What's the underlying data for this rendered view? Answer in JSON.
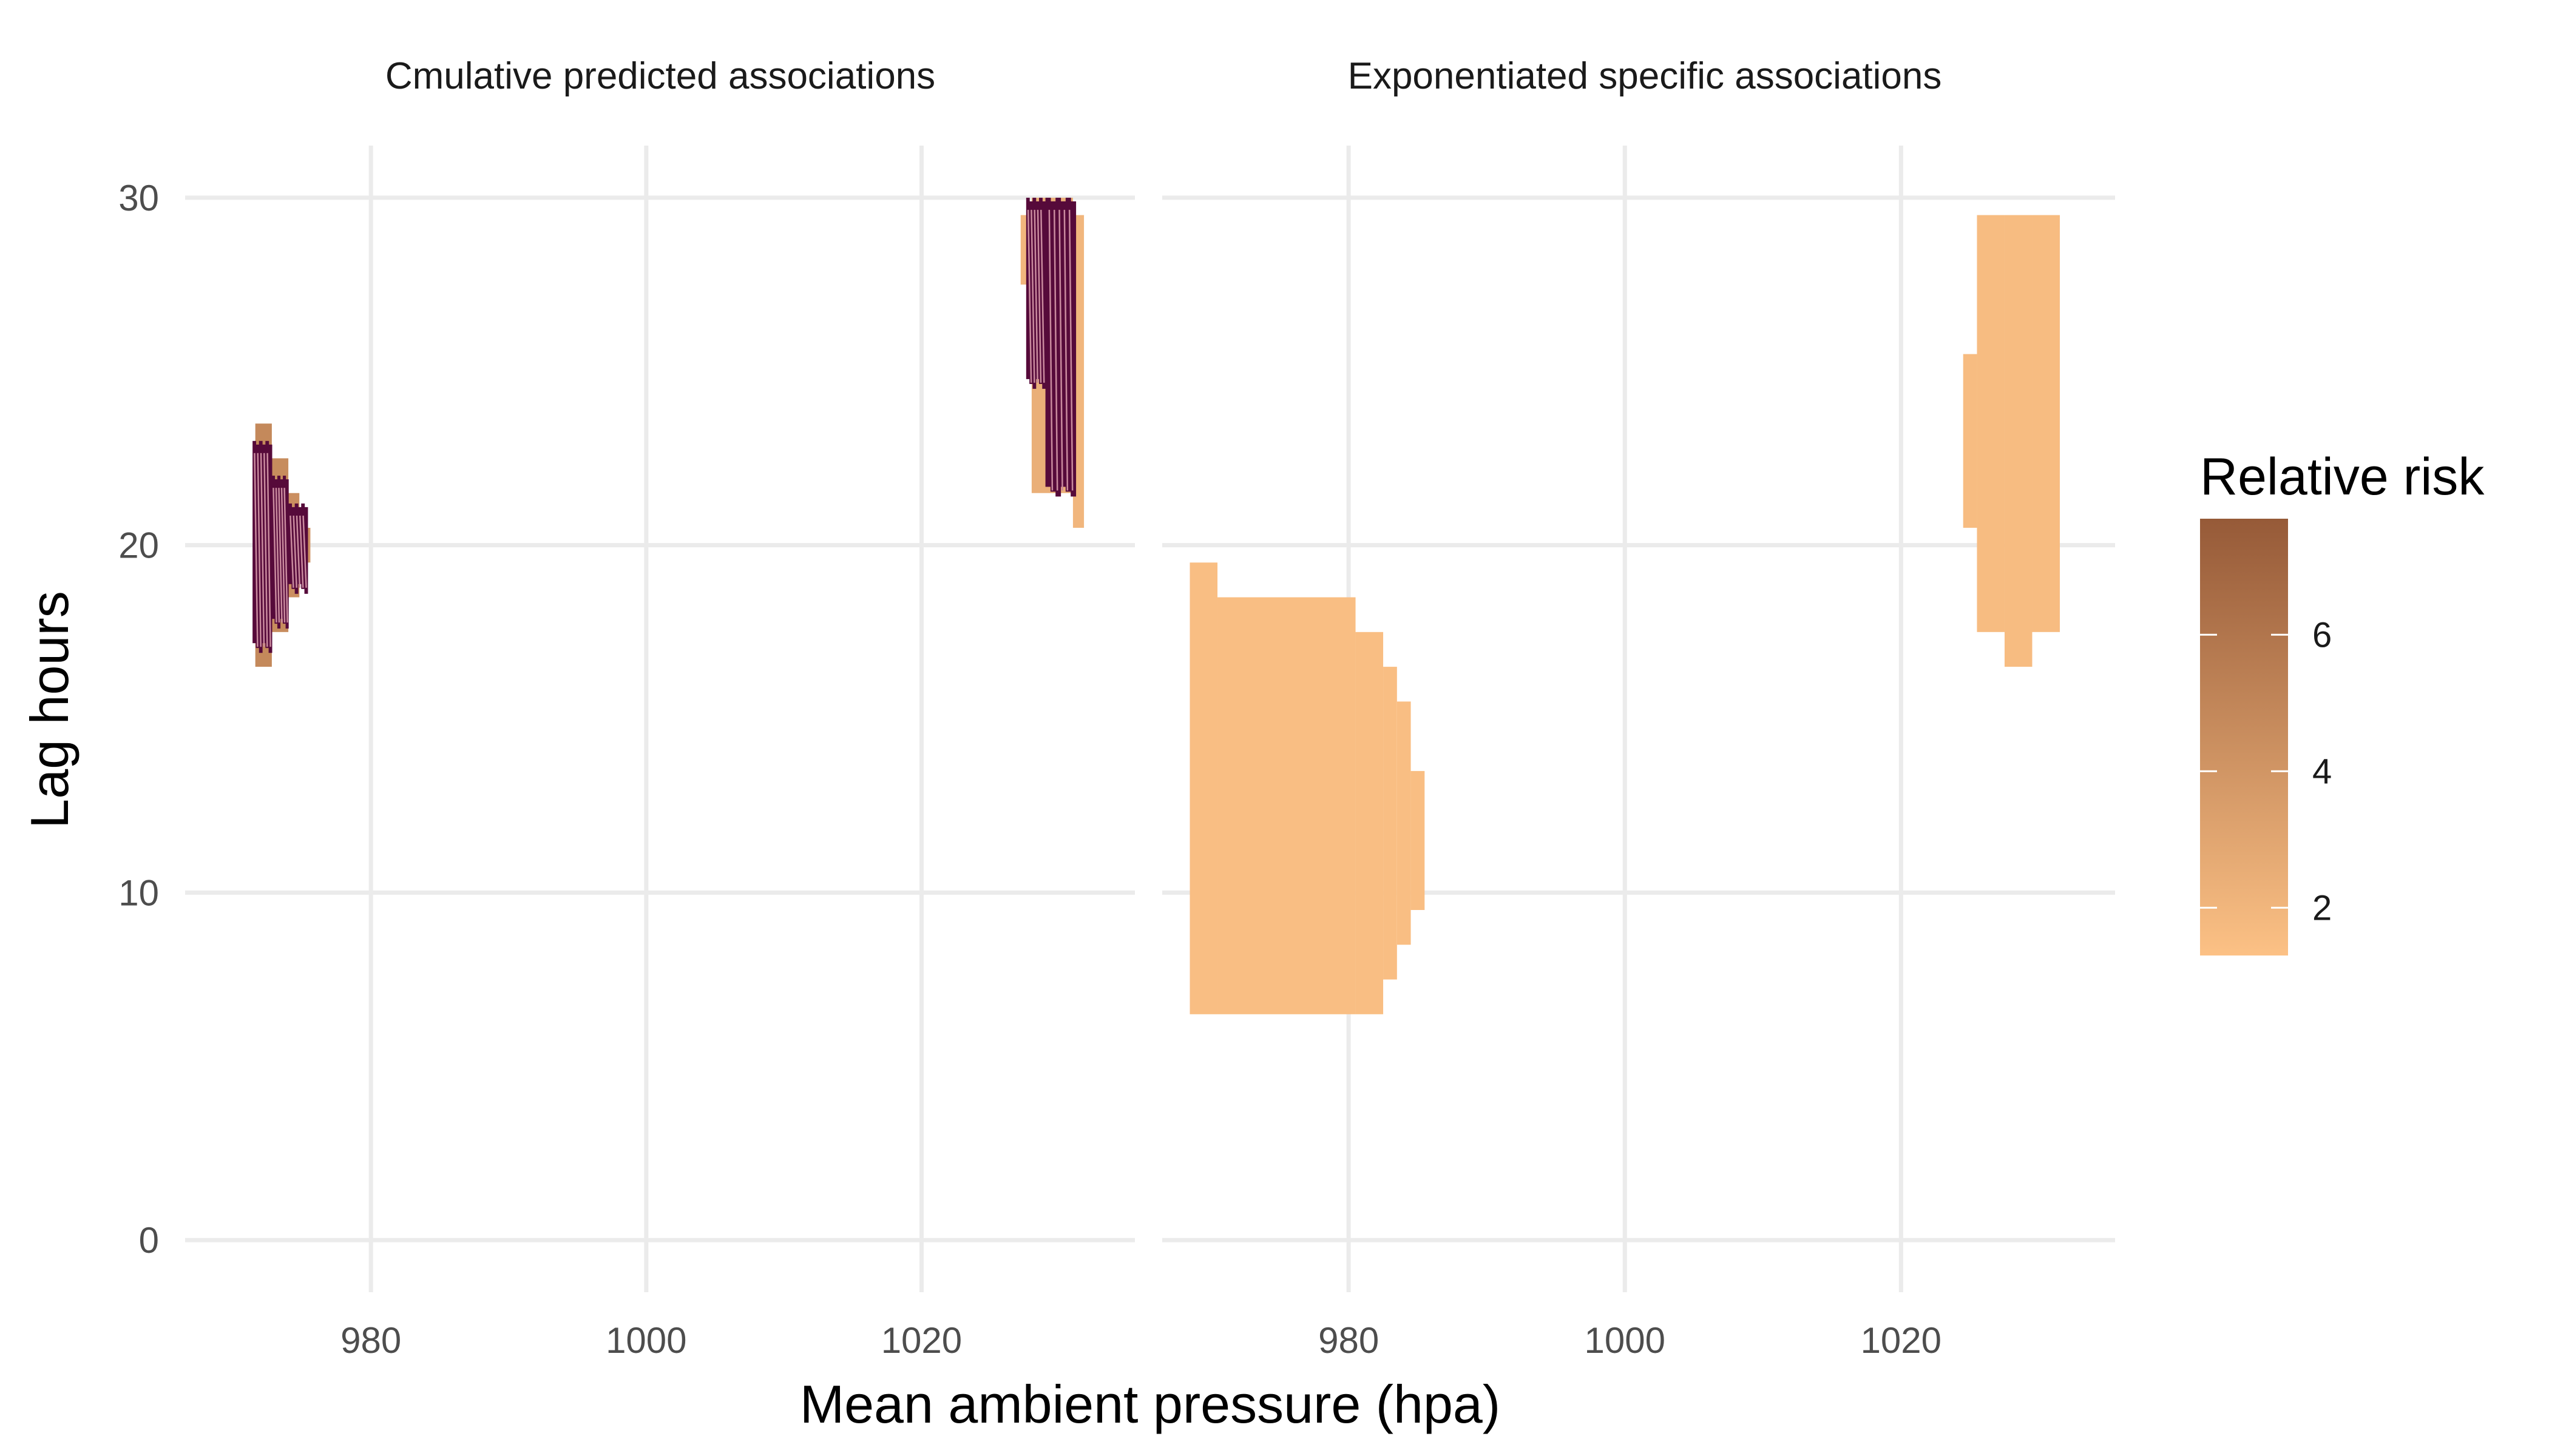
{
  "chart_data": {
    "type": "heatmap",
    "xlabel": "Mean ambient pressure (hpa)",
    "ylabel": "Lag hours",
    "xlim": [
      966.5,
      1035.5
    ],
    "ylim": [
      -1.5,
      31.5
    ],
    "x_ticks": [
      980,
      1000,
      1020
    ],
    "y_ticks": [
      0,
      10,
      20,
      30
    ],
    "grid": true,
    "legend": {
      "title": "Relative risk",
      "placement": "right",
      "min": 1.3,
      "max": 7.7,
      "ticks": [
        2,
        4,
        6
      ],
      "color_low": "#fcc185",
      "color_high": "#965a38"
    },
    "panels": [
      {
        "title": "Cmulative predicted associations",
        "cells_note_colors": "dark cells are the significant region",
        "cells": [
          {
            "x0": 971.6,
            "x1": 972.8,
            "y0": 16.5,
            "y1": 23.5,
            "value": 4.8
          },
          {
            "x0": 972.8,
            "x1": 974.0,
            "y0": 17.5,
            "y1": 22.5,
            "value": 4.6
          },
          {
            "x0": 974.0,
            "x1": 974.8,
            "y0": 18.5,
            "y1": 21.5,
            "value": 4.4
          },
          {
            "x0": 974.8,
            "x1": 975.6,
            "y0": 19.5,
            "y1": 20.5,
            "value": 4.2
          },
          {
            "x0": 1027.2,
            "x1": 1028.0,
            "y0": 27.5,
            "y1": 29.5,
            "value": 2.0
          },
          {
            "x0": 1028.0,
            "x1": 1031.0,
            "y0": 21.5,
            "y1": 30.0,
            "value": 2.4
          },
          {
            "x0": 1031.0,
            "x1": 1031.8,
            "y0": 20.5,
            "y1": 29.5,
            "value": 2.0
          }
        ],
        "significant": [
          {
            "x0": 971.4,
            "x1": 972.8,
            "y0": 16.9,
            "y1": 23.0
          },
          {
            "x0": 972.8,
            "x1": 974.0,
            "y0": 17.6,
            "y1": 22.0
          },
          {
            "x0": 974.0,
            "x1": 975.4,
            "y0": 18.6,
            "y1": 21.2
          },
          {
            "x0": 1027.6,
            "x1": 1029.0,
            "y0": 24.5,
            "y1": 30.0
          },
          {
            "x0": 1029.0,
            "x1": 1031.2,
            "y0": 21.4,
            "y1": 30.0
          }
        ]
      },
      {
        "title": "Exponentiated specific associations",
        "cells": [
          {
            "x0": 968.5,
            "x1": 970.5,
            "y0": 6.5,
            "y1": 19.5,
            "value": 1.5
          },
          {
            "x0": 970.5,
            "x1": 980.5,
            "y0": 6.5,
            "y1": 18.5,
            "value": 1.5
          },
          {
            "x0": 980.5,
            "x1": 982.5,
            "y0": 6.5,
            "y1": 17.5,
            "value": 1.5
          },
          {
            "x0": 982.5,
            "x1": 983.5,
            "y0": 7.5,
            "y1": 16.5,
            "value": 1.5
          },
          {
            "x0": 983.5,
            "x1": 984.5,
            "y0": 8.5,
            "y1": 15.5,
            "value": 1.5
          },
          {
            "x0": 984.5,
            "x1": 985.5,
            "y0": 9.5,
            "y1": 13.5,
            "value": 1.5
          },
          {
            "x0": 1024.5,
            "x1": 1025.5,
            "y0": 20.5,
            "y1": 25.5,
            "value": 1.6
          },
          {
            "x0": 1025.5,
            "x1": 1027.5,
            "y0": 17.5,
            "y1": 29.5,
            "value": 1.6
          },
          {
            "x0": 1027.5,
            "x1": 1029.5,
            "y0": 16.5,
            "y1": 29.5,
            "value": 1.6
          },
          {
            "x0": 1029.5,
            "x1": 1031.5,
            "y0": 17.5,
            "y1": 29.5,
            "value": 1.6
          }
        ]
      }
    ]
  }
}
